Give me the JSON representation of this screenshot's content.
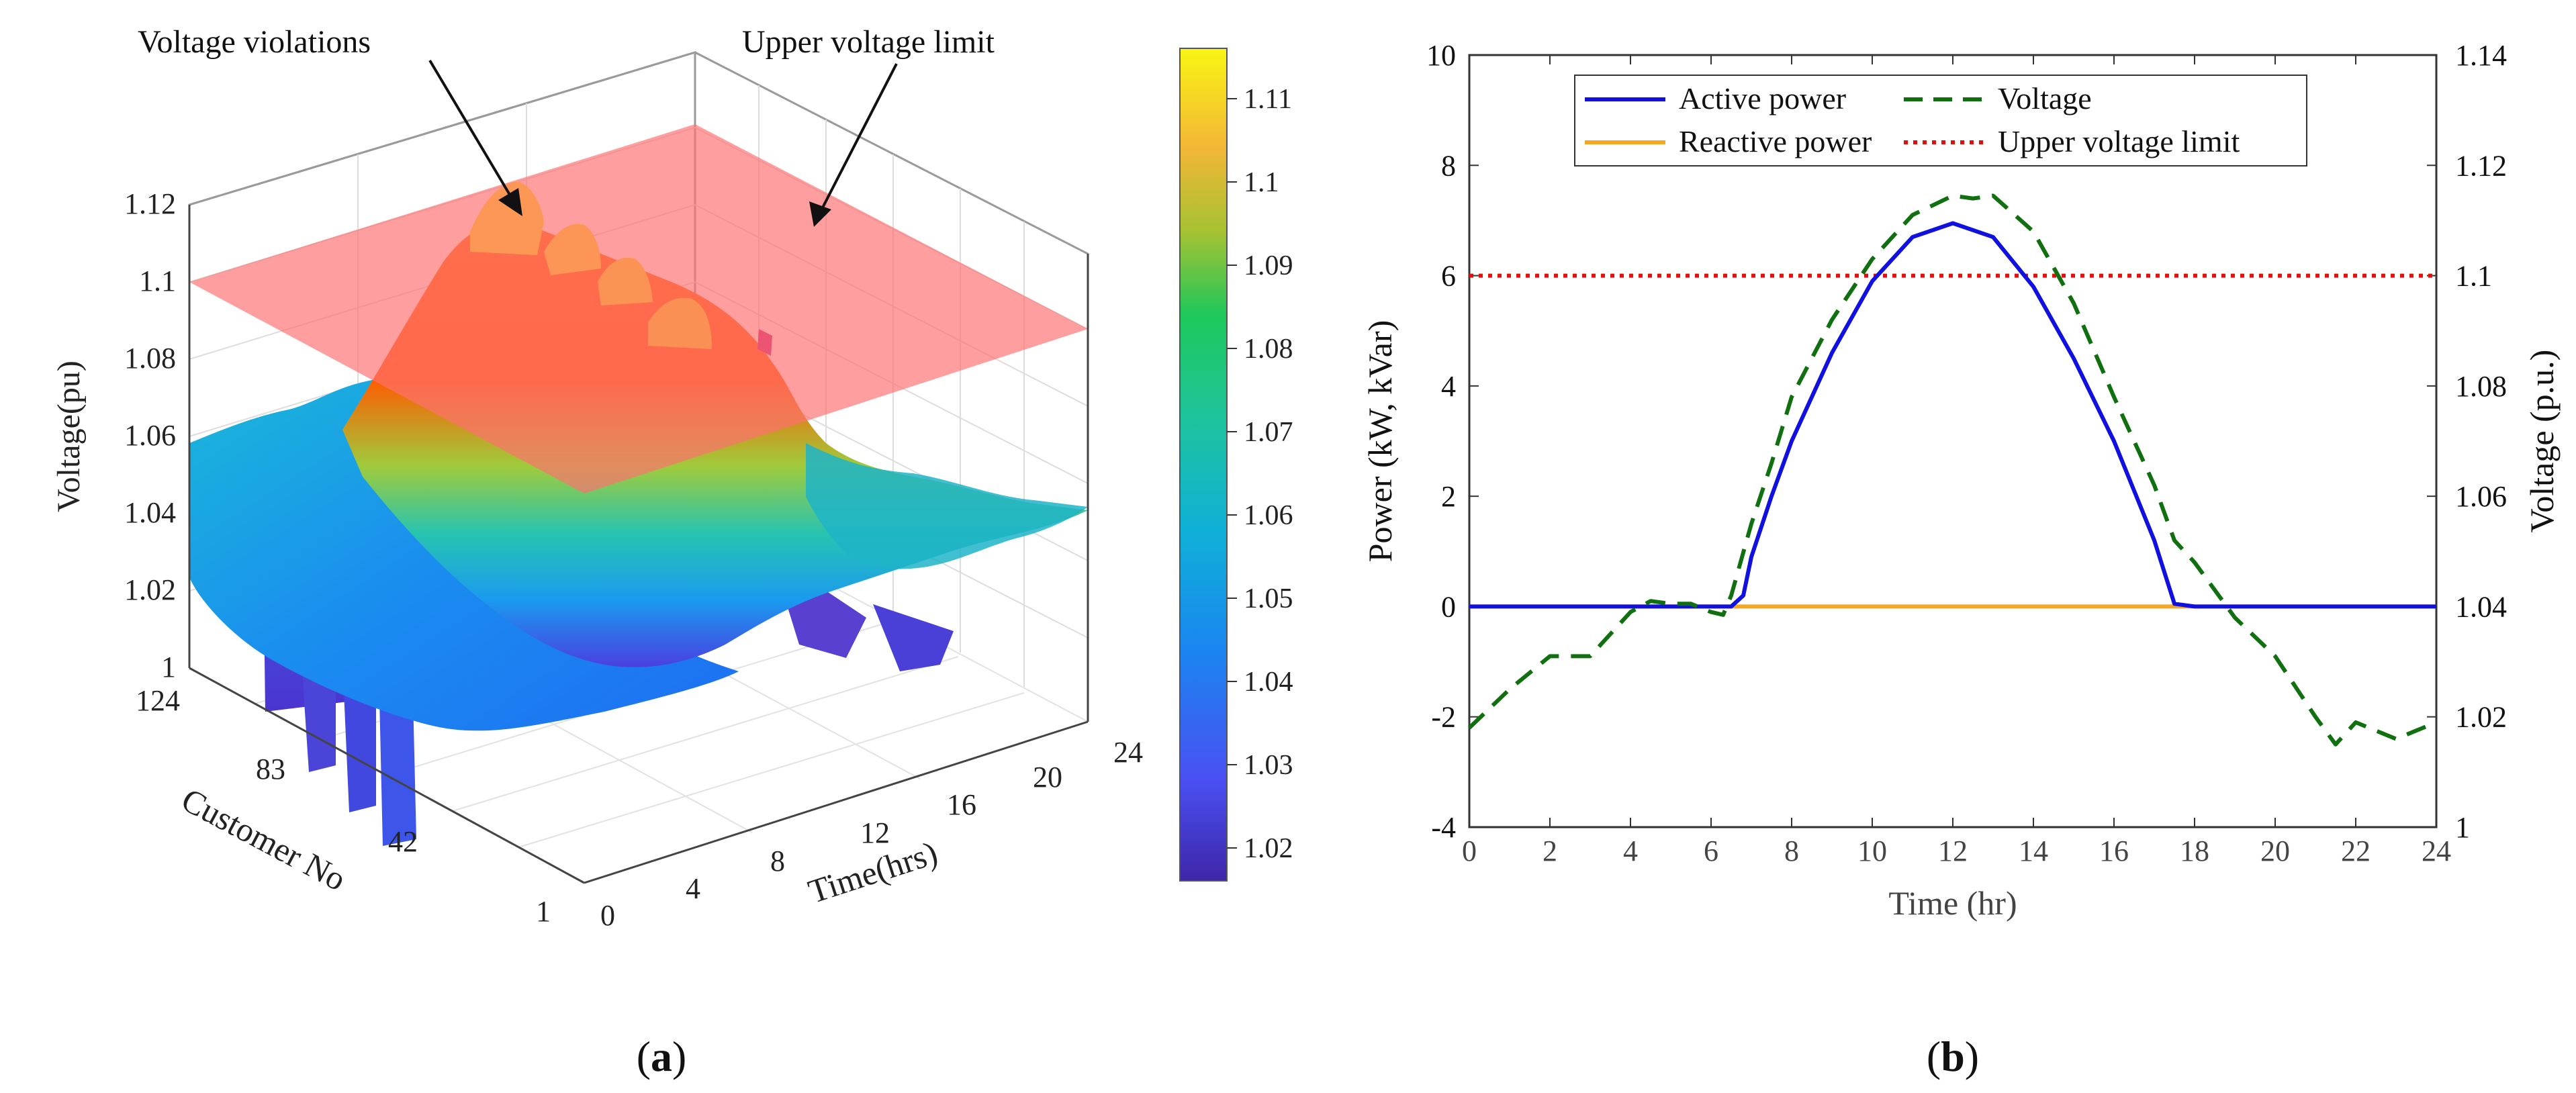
{
  "panels": {
    "a_label": "a",
    "b_label": "b"
  },
  "chart_data": [
    {
      "type": "surface3d",
      "panel": "a",
      "zlabel": "Voltage(pu)",
      "xlabel": "Time(hrs)",
      "ylabel": "Customer No",
      "x_ticks": [
        "0",
        "4",
        "8",
        "12",
        "16",
        "20",
        "24"
      ],
      "y_ticks": [
        "1",
        "42",
        "83",
        "124"
      ],
      "z_ticks": [
        "1",
        "1.02",
        "1.04",
        "1.06",
        "1.08",
        "1.1",
        "1.12"
      ],
      "zlim": [
        1,
        1.12
      ],
      "upper_voltage_limit": 1.1,
      "colorbar": {
        "ticks": [
          "1.02",
          "1.03",
          "1.04",
          "1.05",
          "1.06",
          "1.07",
          "1.08",
          "1.09",
          "1.1",
          "1.11"
        ],
        "range": [
          1.015,
          1.115
        ]
      },
      "annotations": [
        "Voltage violations",
        "Upper voltage limit"
      ],
      "colors": {
        "limit_plane": "#ff7070"
      }
    },
    {
      "type": "line",
      "panel": "b",
      "xlabel": "Time (hr)",
      "ylabel": "Power (kW, kVar)",
      "ylabel_right": "Voltage (p.u.)",
      "xlim": [
        0,
        24
      ],
      "ylim": [
        -4,
        10
      ],
      "ylim_right": [
        1,
        1.14
      ],
      "x_ticks": [
        "0",
        "2",
        "4",
        "6",
        "8",
        "10",
        "12",
        "14",
        "16",
        "18",
        "20",
        "22",
        "24"
      ],
      "y_ticks": [
        "-4",
        "-2",
        "0",
        "2",
        "4",
        "6",
        "8",
        "10"
      ],
      "y_ticks_right": [
        "1",
        "1.02",
        "1.04",
        "1.06",
        "1.08",
        "1.1",
        "1.12",
        "1.14"
      ],
      "legend_position": "top-center",
      "series": [
        {
          "name": "Active power",
          "axis": "left",
          "color": "#1010e0",
          "style": "solid",
          "x": [
            0,
            6.5,
            6.8,
            7,
            7.5,
            8,
            9,
            10,
            11,
            12,
            13,
            14,
            15,
            16,
            17,
            17.5,
            18,
            24
          ],
          "y": [
            0,
            0,
            0.2,
            0.9,
            2.0,
            3.0,
            4.6,
            5.9,
            6.7,
            6.95,
            6.7,
            5.8,
            4.5,
            3.0,
            1.2,
            0.05,
            0,
            0
          ]
        },
        {
          "name": "Reactive power",
          "axis": "left",
          "color": "#f5a623",
          "style": "solid",
          "x": [
            0,
            24
          ],
          "y": [
            0,
            0
          ]
        },
        {
          "name": "Voltage",
          "axis": "right",
          "color": "#107010",
          "style": "dashed",
          "x": [
            0,
            1,
            2,
            3,
            3.5,
            4,
            4.5,
            5,
            5.5,
            6,
            6.3,
            6.5,
            7,
            7.5,
            8,
            9,
            10,
            11,
            12,
            12.5,
            13,
            14,
            15,
            16,
            17,
            17.5,
            18,
            19,
            20,
            21,
            21.5,
            22,
            23,
            24
          ],
          "y": [
            1.018,
            1.025,
            1.031,
            1.031,
            1.035,
            1.039,
            1.041,
            1.0405,
            1.0405,
            1.039,
            1.0385,
            1.042,
            1.055,
            1.066,
            1.078,
            1.092,
            1.103,
            1.111,
            1.1145,
            1.114,
            1.1145,
            1.108,
            1.095,
            1.078,
            1.062,
            1.052,
            1.048,
            1.038,
            1.031,
            1.02,
            1.015,
            1.019,
            1.016,
            1.019
          ]
        },
        {
          "name": "Upper voltage limit",
          "axis": "right",
          "color": "#e01010",
          "style": "dotted",
          "x": [
            0,
            24
          ],
          "y": [
            1.1,
            1.1
          ]
        }
      ]
    }
  ]
}
